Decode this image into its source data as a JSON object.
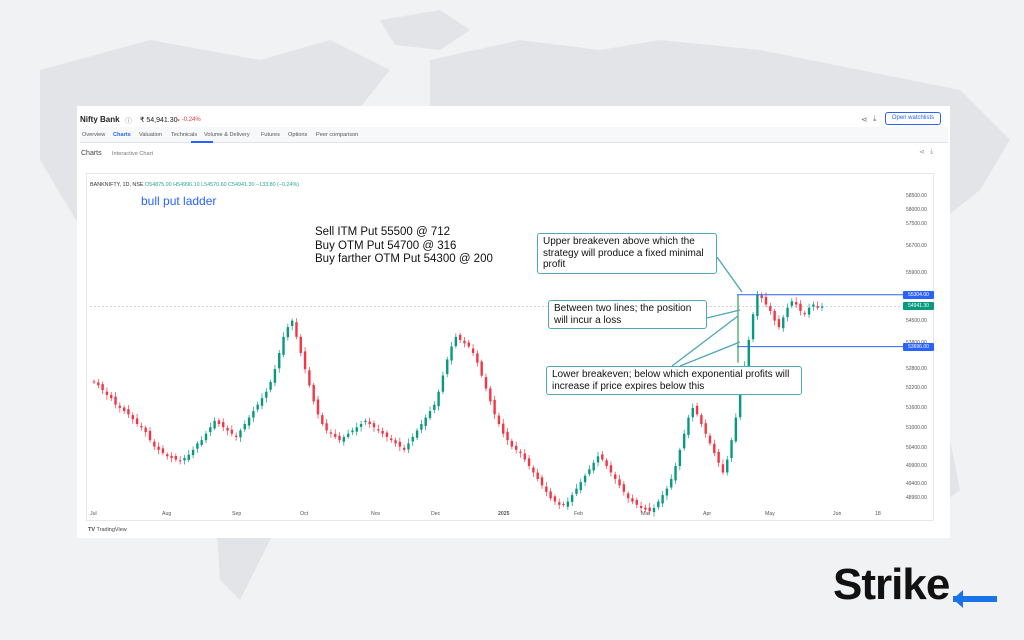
{
  "header": {
    "title": "Nifty Bank",
    "info_icon": "info-icon",
    "price": "₹ 54,941.30",
    "change": "-0.24%",
    "watchlist_button": "Open watchlists"
  },
  "tabs": [
    "Overview",
    "Charts",
    "Valuation",
    "Technicals",
    "Volume & Delivery",
    "Futures",
    "Options",
    "Peer comparison"
  ],
  "active_tab": "Charts",
  "subheader": {
    "title": "Charts",
    "note": "Interactive Chart"
  },
  "chart_data": {
    "type": "candlestick",
    "symbol_line": {
      "symbol": "BANKNIFTY, 1D, NSE",
      "values": "O54875.90 H54996.10 L54570.60 C54941.30 −133.80 (−0.24%)"
    },
    "title": "bull put ladder",
    "strategy_legs": [
      "Sell ITM Put 55500 @ 712",
      "Buy OTM Put 54700 @ 316",
      "Buy farther OTM Put 54300 @ 200"
    ],
    "annotations": [
      "Upper breakeven above which the strategy will produce a fixed minimal profit",
      "Between two lines; the position will incur a loss",
      "Lower breakeven; below which exponential profits will increase if price expires below this"
    ],
    "y_ticks": [
      "58500.00",
      "58000.00",
      "57500.00",
      "56700.00",
      "55900.00",
      "54500.00",
      "53800.00",
      "52800.00",
      "52200.00",
      "51600.00",
      "51000.00",
      "50400.00",
      "49900.00",
      "49400.00",
      "48960.00"
    ],
    "price_lines": [
      {
        "label": "55304.00",
        "value": 55304,
        "color": "#2962ff"
      },
      {
        "label": "54941.30",
        "value": 54941.3,
        "color": "#089981"
      },
      {
        "label": "53696.00",
        "value": 53696,
        "color": "#2962ff"
      }
    ],
    "x_ticks": [
      "Jul",
      "Aug",
      "Sep",
      "Oct",
      "Nov",
      "Dec",
      "2025",
      "Feb",
      "Mar",
      "Apr",
      "May",
      "Jun",
      "18"
    ],
    "series": [
      52600,
      52500,
      52350,
      52200,
      52100,
      51900,
      51800,
      51700,
      51600,
      51450,
      51300,
      51200,
      51050,
      50800,
      50600,
      50500,
      50400,
      50300,
      50250,
      50200,
      50150,
      50250,
      50350,
      50500,
      50700,
      50800,
      51000,
      51200,
      51400,
      51300,
      51200,
      51100,
      51000,
      50900,
      51100,
      51300,
      51500,
      51700,
      51900,
      52100,
      52300,
      52600,
      53000,
      53500,
      54000,
      54300,
      54500,
      54000,
      53500,
      53000,
      52500,
      52000,
      51600,
      51300,
      51100,
      51000,
      50900,
      50800,
      50900,
      51000,
      51100,
      51200,
      51300,
      51400,
      51300,
      51200,
      51100,
      51000,
      50900,
      50800,
      50700,
      50600,
      50500,
      50700,
      50900,
      51100,
      51300,
      51500,
      51700,
      51900,
      52300,
      52800,
      53300,
      53700,
      54000,
      53900,
      53800,
      53700,
      53500,
      53200,
      52800,
      52400,
      52000,
      51600,
      51300,
      51000,
      50800,
      50600,
      50500,
      50400,
      50200,
      50000,
      49800,
      49600,
      49400,
      49200,
      49000,
      48900,
      48800,
      48800,
      48900,
      49100,
      49300,
      49500,
      49700,
      49900,
      50100,
      50300,
      50200,
      50000,
      49800,
      49600,
      49400,
      49200,
      49000,
      48900,
      48800,
      48700,
      48650,
      48600,
      48700,
      48900,
      49100,
      49300,
      49600,
      50000,
      50500,
      51000,
      51500,
      51800,
      51600,
      51300,
      51000,
      50700,
      50400,
      50100,
      49800,
      50200,
      50800,
      51500,
      52300,
      53100,
      53900,
      54700,
      55300,
      55200,
      55000,
      54800,
      54500,
      54300,
      54600,
      54900,
      55100,
      55000,
      54800,
      54700,
      54900,
      55000,
      54900,
      54941
    ]
  },
  "footer": {
    "tradingview": "TradingView"
  },
  "brand": {
    "text": "Stri",
    "mark": "ke"
  },
  "colors": {
    "up": "#089981",
    "down": "#f23645",
    "line_blue": "#2962ff",
    "annotation_border": "#4fa8b8",
    "brand_blue": "#1a73e8"
  }
}
